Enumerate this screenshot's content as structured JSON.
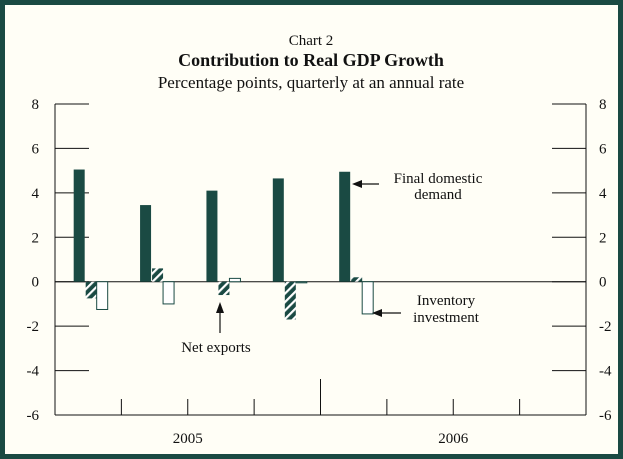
{
  "chart_data": {
    "type": "bar",
    "label": "Chart 2",
    "title": "Contribution to Real GDP Growth",
    "subtitle": "Percentage points, quarterly at an annual rate",
    "ylim": [
      -6,
      8
    ],
    "yticks": [
      "8",
      "6",
      "4",
      "2",
      "0",
      "-2",
      "-4",
      "-6"
    ],
    "year_labels": [
      "2005",
      "2006"
    ],
    "quarters": 8,
    "series": [
      {
        "key": "fdd",
        "values": [
          5.05,
          3.45,
          4.1,
          4.65,
          4.95
        ]
      },
      {
        "key": "nx",
        "values": [
          -0.75,
          0.6,
          -0.6,
          -1.7,
          0.2
        ]
      },
      {
        "key": "inv",
        "values": [
          -1.25,
          -1.0,
          0.15,
          -0.05,
          -1.45
        ]
      }
    ],
    "annotations": {
      "fdd": [
        "Final domestic",
        "demand"
      ],
      "nx": [
        "Net exports"
      ],
      "inv": [
        "Inventory",
        "investment"
      ]
    },
    "colors": {
      "fdd": "#1a4a43",
      "nx": "#1a4a43",
      "inv": "#ffffff",
      "frame": "#1a4a43"
    }
  }
}
